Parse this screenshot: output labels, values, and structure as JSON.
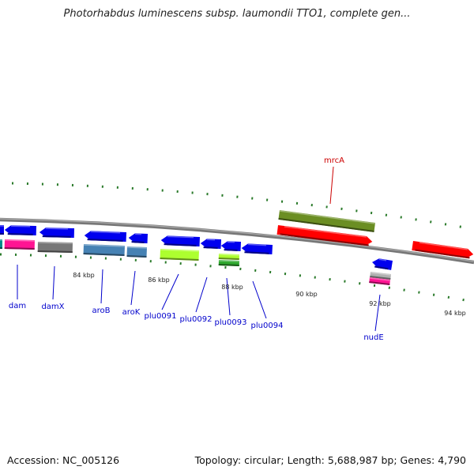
{
  "title": "Photorhabdus luminescens subsp. laumondii TTO1, complete gen...",
  "footer": {
    "accession": "Accession: NC_005126",
    "summary": "Topology: circular; Length: 5,688,987 bp; Genes: 4,790"
  },
  "axis_labels": [
    {
      "text": "84 kbp",
      "kbp": 84
    },
    {
      "text": "86 kbp",
      "kbp": 86
    },
    {
      "text": "88 kbp",
      "kbp": 88
    },
    {
      "text": "90 kbp",
      "kbp": 90
    },
    {
      "text": "92 kbp",
      "kbp": 92
    },
    {
      "text": "94 kbp",
      "kbp": 94
    }
  ],
  "gene_labels": [
    {
      "name": "dam",
      "color": "#0000cc"
    },
    {
      "name": "damX",
      "color": "#0000cc"
    },
    {
      "name": "aroB",
      "color": "#0000cc"
    },
    {
      "name": "aroK",
      "color": "#0000cc"
    },
    {
      "name": "plu0091",
      "color": "#0000cc"
    },
    {
      "name": "plu0092",
      "color": "#0000cc"
    },
    {
      "name": "plu0093",
      "color": "#0000cc"
    },
    {
      "name": "plu0094",
      "color": "#0000cc"
    },
    {
      "name": "mrcA",
      "color": "#cc0000"
    },
    {
      "name": "nudE",
      "color": "#0000cc"
    }
  ],
  "colors": {
    "backbone": "#888888",
    "tick": "#2a7a2a",
    "cds_blue": "#0000ee",
    "cds_red": "#ff0000",
    "olive": "#6b8e23",
    "magenta": "#ff1493",
    "gray": "#777777",
    "steel": "#4682b4",
    "lime": "#adff2f",
    "green": "#2ea82e",
    "silver": "#b0b0b0"
  }
}
